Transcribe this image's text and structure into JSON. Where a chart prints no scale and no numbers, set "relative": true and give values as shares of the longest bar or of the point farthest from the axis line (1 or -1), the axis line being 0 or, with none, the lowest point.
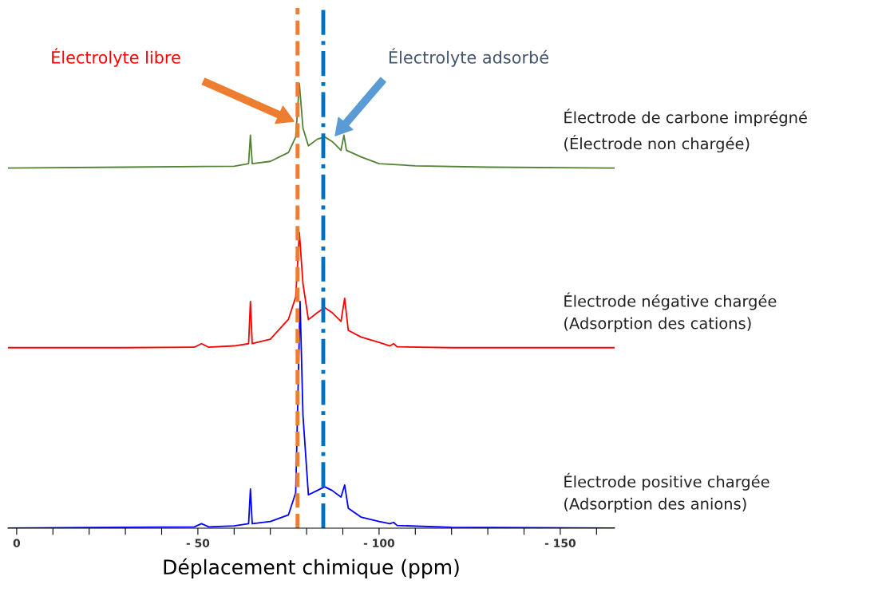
{
  "chart_data": {
    "type": "line",
    "relative": true,
    "xlabel": "Déplacement chimique (ppm)",
    "tick_labels": "x",
    "grid": false,
    "legend": false,
    "xlim": [
      2.4,
      -165
    ],
    "xticks": [
      0,
      {
        "value": -10,
        "label": null
      },
      {
        "value": -20,
        "label": null
      },
      {
        "value": -30,
        "label": null
      },
      {
        "value": -40,
        "label": null
      },
      {
        "value": -50,
        "label": "- 50"
      },
      {
        "value": -60,
        "label": null
      },
      {
        "value": -70,
        "label": null
      },
      {
        "value": -80,
        "label": null
      },
      {
        "value": -90,
        "label": null
      },
      {
        "value": -100,
        "label": "- 100"
      },
      {
        "value": -110,
        "label": null
      },
      {
        "value": -120,
        "label": null
      },
      {
        "value": -130,
        "label": null
      },
      {
        "value": -140,
        "label": null
      },
      {
        "value": -150,
        "label": "- 150"
      },
      {
        "value": -160,
        "label": null
      }
    ],
    "series": [
      {
        "name": "Électrode de carbone imprégné\n(Électrode non chargée)",
        "color": "#548235",
        "x": [
          2.4,
          -30,
          -60,
          -64,
          -64.5,
          -65,
          -70,
          -75,
          -77,
          -78,
          -79,
          -80.5,
          -83,
          -85,
          -87,
          -89.5,
          -90.3,
          -91,
          -95,
          -100,
          -110,
          -130,
          -165
        ],
        "values": [
          0.81,
          0.812,
          0.814,
          0.82,
          0.884,
          0.82,
          0.825,
          0.845,
          0.88,
          1.0,
          0.9,
          0.86,
          0.875,
          0.88,
          0.87,
          0.85,
          0.884,
          0.85,
          0.835,
          0.82,
          0.815,
          0.812,
          0.81
        ]
      },
      {
        "name": "Électrode négative chargée\n(Adsorption des cations)",
        "color": "#ff0000",
        "x": [
          2.4,
          -30,
          -49,
          -51,
          -53,
          -60,
          -64,
          -64.5,
          -65,
          -70,
          -75,
          -77,
          -78,
          -79,
          -80.5,
          -83,
          -85,
          -87,
          -89.5,
          -90.5,
          -91.5,
          -95,
          -100,
          -103,
          -104,
          -105,
          -120,
          -165
        ],
        "values": [
          0.406,
          0.406,
          0.407,
          0.415,
          0.407,
          0.41,
          0.415,
          0.51,
          0.415,
          0.425,
          0.47,
          0.52,
          0.665,
          0.55,
          0.469,
          0.485,
          0.496,
          0.485,
          0.465,
          0.517,
          0.445,
          0.43,
          0.418,
          0.41,
          0.415,
          0.408,
          0.406,
          0.406
        ]
      },
      {
        "name": "Électrode positive chargée\n(Adsorption des anions)",
        "color": "#0000ff",
        "x": [
          2.4,
          -30,
          -49,
          -51,
          -53,
          -60,
          -64,
          -64.5,
          -65,
          -70,
          -75,
          -77,
          -78.2,
          -79,
          -80.5,
          -83,
          -85,
          -87,
          -89.5,
          -90.5,
          -91.5,
          -95,
          -100,
          -103,
          -104,
          -105,
          -120,
          -165
        ],
        "values": [
          0.0,
          0.002,
          0.003,
          0.01,
          0.003,
          0.005,
          0.01,
          0.088,
          0.01,
          0.015,
          0.03,
          0.08,
          0.51,
          0.254,
          0.075,
          0.085,
          0.093,
          0.085,
          0.07,
          0.097,
          0.045,
          0.025,
          0.015,
          0.01,
          0.013,
          0.006,
          0.002,
          0.0
        ]
      }
    ],
    "ref_lines": [
      {
        "axis": "x",
        "value": -77.5,
        "color": "#ed7d31",
        "line_style": "dashed"
      },
      {
        "axis": "x",
        "value": -84.6,
        "color": "#0070c0",
        "line_style": "dashdot"
      }
    ],
    "annotations": [
      "Électrolyte libre",
      "Électrolyte adsorbé"
    ]
  }
}
